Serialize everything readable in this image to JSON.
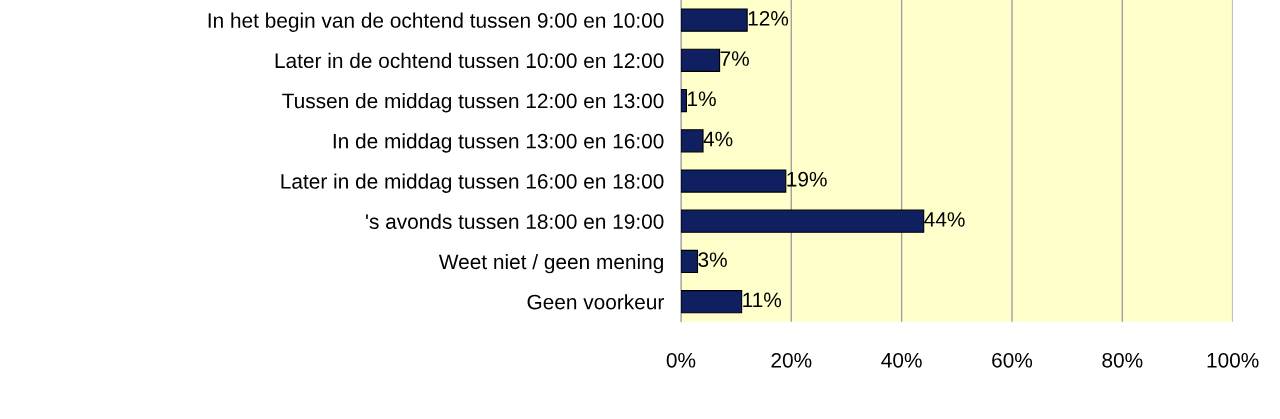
{
  "chart_data": {
    "type": "bar",
    "orientation": "horizontal",
    "categories": [
      "In het begin van de ochtend tussen 9:00 en 10:00",
      "Later in de ochtend tussen 10:00 en 12:00",
      "Tussen de middag tussen 12:00 en 13:00",
      "In de middag tussen 13:00 en 16:00",
      "Later in de middag tussen 16:00 en 18:00",
      "'s avonds tussen 18:00 en 19:00",
      "Weet niet / geen mening",
      "Geen voorkeur"
    ],
    "values": [
      12,
      7,
      1,
      4,
      19,
      44,
      3,
      11
    ],
    "value_labels": [
      "12%",
      "7%",
      "1%",
      "4%",
      "19%",
      "44%",
      "3%",
      "11%"
    ],
    "color": "#0f1f5f",
    "xlim": [
      0,
      100
    ],
    "xticks": [
      {
        "value": 0,
        "label": "0%"
      },
      {
        "value": 20,
        "label": "20%"
      },
      {
        "value": 40,
        "label": "40%"
      },
      {
        "value": 60,
        "label": "60%"
      },
      {
        "value": 80,
        "label": "80%"
      },
      {
        "value": 100,
        "label": "100%"
      }
    ],
    "grid": "x",
    "legend": false
  }
}
